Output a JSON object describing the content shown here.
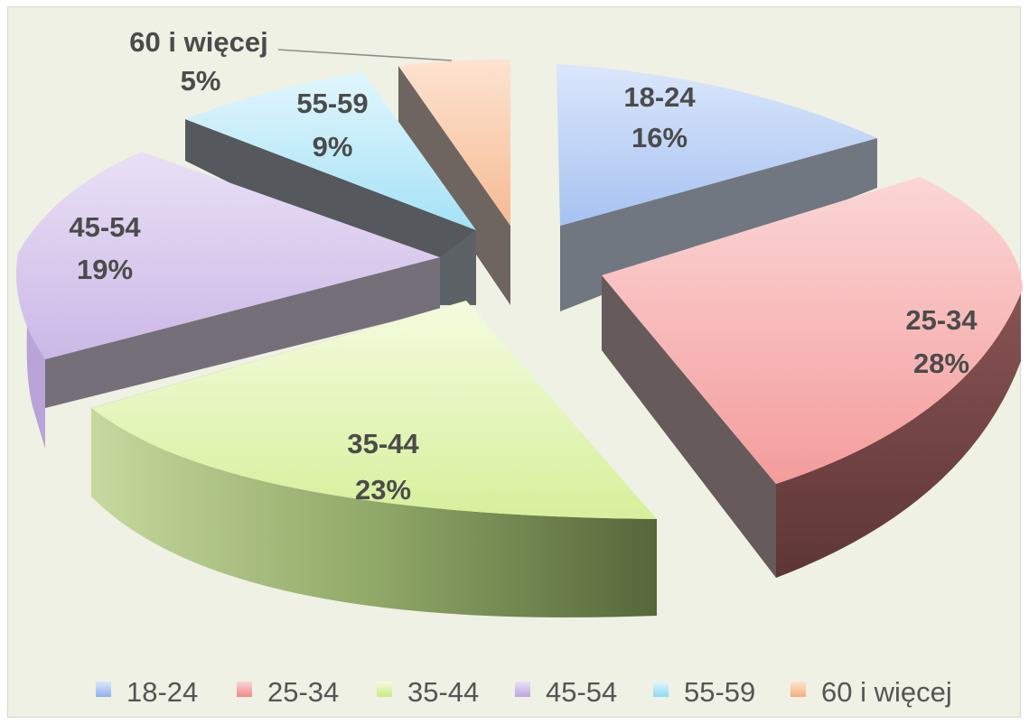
{
  "chart_data": {
    "type": "pie",
    "title": "",
    "categories": [
      "18-24",
      "25-34",
      "35-44",
      "45-54",
      "55-59",
      "60 i więcej"
    ],
    "values": [
      16,
      28,
      23,
      19,
      9,
      5
    ],
    "value_labels": [
      "16%",
      "28%",
      "23%",
      "19%",
      "9%",
      "5%"
    ],
    "colors": [
      "#a8c4f2",
      "#f4a2a2",
      "#d3ee96",
      "#c9b6e6",
      "#a9e4f7",
      "#f9c29b"
    ],
    "legend_position": "bottom",
    "style": "3d-exploded"
  }
}
